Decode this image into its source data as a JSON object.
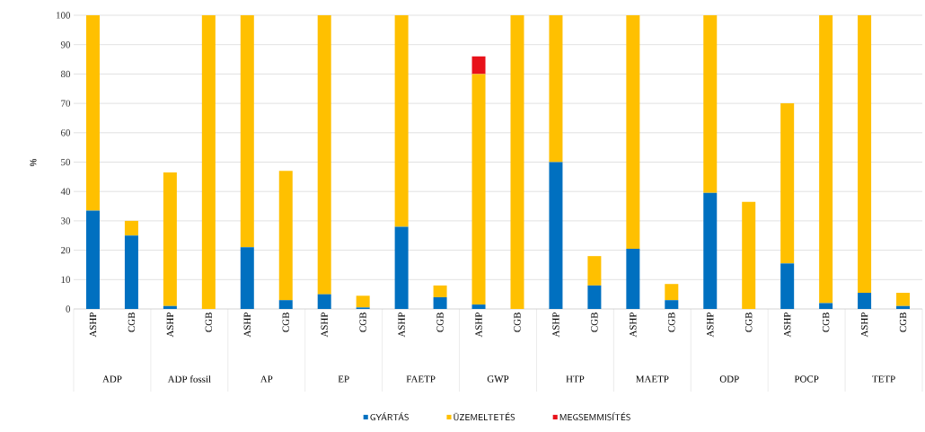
{
  "chart_data": {
    "type": "bar",
    "stacked": true,
    "ylabel": "%",
    "categories": [
      "ASHP",
      "CGB",
      "ASHP",
      "CGB",
      "ASHP",
      "CGB",
      "ASHP",
      "CGB",
      "ASHP",
      "CGB",
      "ASHP",
      "CGB",
      "ASHP",
      "CGB",
      "ASHP",
      "CGB",
      "ASHP",
      "CGB",
      "ASHP",
      "CGB",
      "ASHP",
      "CGB"
    ],
    "annotations": [
      "ADP",
      "ADP fossil",
      "AP",
      "EP",
      "FAETP",
      "GWP",
      "HTP",
      "MAETP",
      "ODP",
      "POCP",
      "TETP"
    ],
    "series": [
      {
        "name": "GYÁRTÁS",
        "color": "#0070c0",
        "values": [
          33.5,
          25,
          1,
          0,
          21,
          3,
          5,
          0.5,
          28,
          4,
          1.5,
          0,
          50,
          8,
          20.5,
          3,
          39.5,
          0,
          15.5,
          2,
          5.5,
          1
        ]
      },
      {
        "name": "ÜZEMELTETÉS",
        "color": "#ffc000",
        "values": [
          66.5,
          5,
          45.5,
          100,
          79,
          44,
          95,
          4,
          72,
          4,
          78.5,
          100,
          50,
          10,
          79.5,
          5.5,
          60.5,
          36.5,
          54.5,
          98,
          94.5,
          4.5
        ]
      },
      {
        "name": "MEGSEMMISÍTÉS",
        "color": "#e8111a",
        "values": [
          null,
          null,
          null,
          null,
          null,
          null,
          null,
          null,
          null,
          null,
          6,
          null,
          null,
          null,
          null,
          null,
          null,
          null,
          null,
          null,
          null,
          null
        ]
      }
    ],
    "ylim": [
      0,
      100
    ],
    "yticks": [
      0,
      10,
      20,
      30,
      40,
      50,
      60,
      70,
      80,
      90,
      100
    ],
    "grid": "y",
    "legend": "bottom"
  }
}
